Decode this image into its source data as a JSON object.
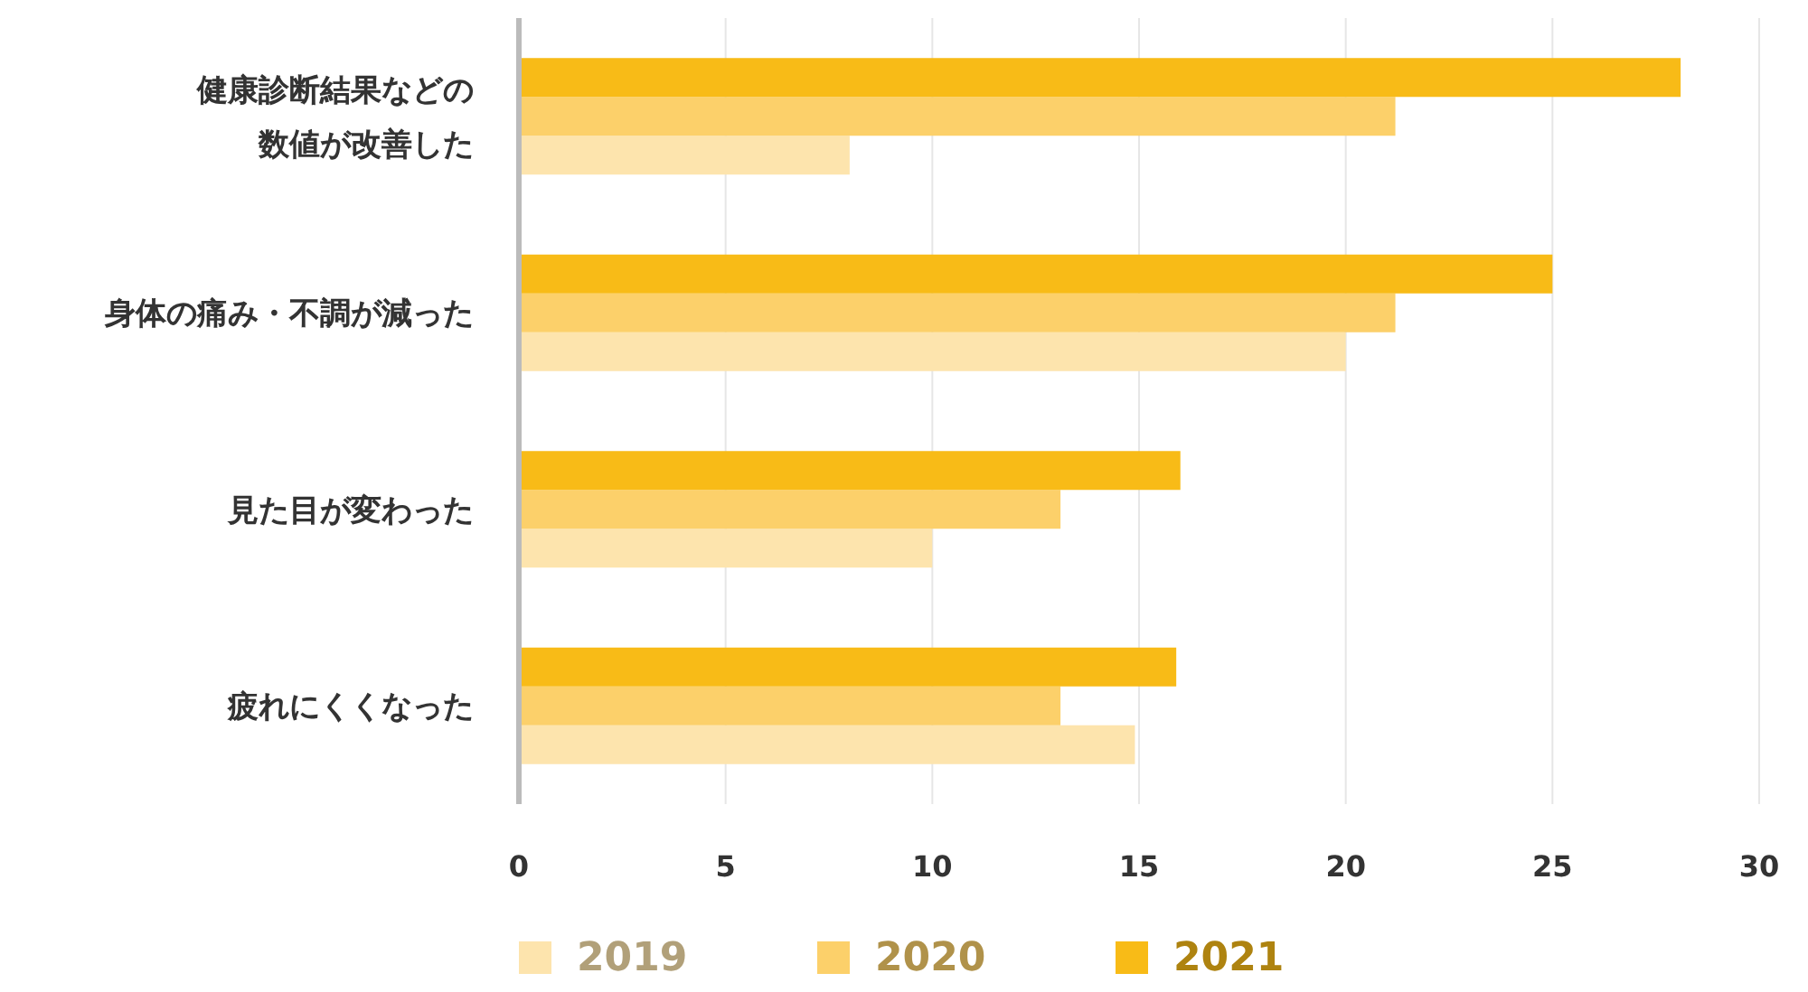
{
  "chart_data": {
    "type": "bar",
    "orientation": "horizontal",
    "categories": [
      "健康診断結果などの数値が改善した",
      "身体の痛み・不調が減った",
      "見た目が変わった",
      "疲れにくくなった"
    ],
    "series": [
      {
        "name": "2019",
        "color": "#fde4ad",
        "values": [
          8.0,
          20.0,
          10.0,
          14.9
        ]
      },
      {
        "name": "2020",
        "color": "#fcd06a",
        "values": [
          21.2,
          21.2,
          13.1,
          13.1
        ]
      },
      {
        "name": "2021",
        "color": "#f8bb17",
        "values": [
          28.1,
          25.0,
          16.0,
          15.9
        ]
      }
    ],
    "xlim": [
      0,
      30
    ],
    "xticks": [
      0,
      5,
      10,
      15,
      20,
      25,
      30
    ],
    "grid": "x",
    "legend": "bottom"
  }
}
